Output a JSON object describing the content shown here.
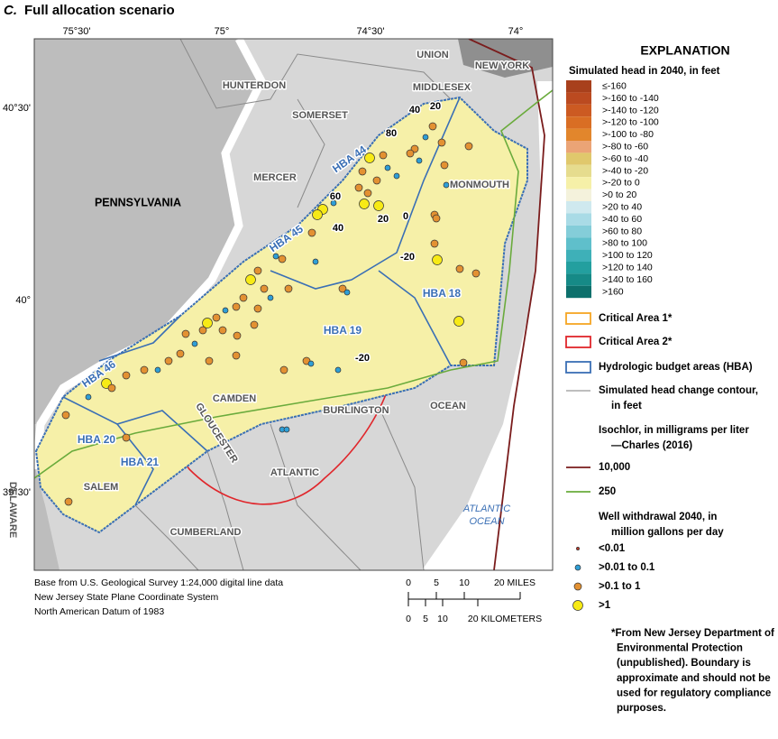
{
  "title_letter": "C.",
  "title": "Full allocation scenario",
  "longitudes": [
    "75°30'",
    "75°",
    "74°30'",
    "74°"
  ],
  "latitudes": [
    "40°30'",
    "40°",
    "39°30'"
  ],
  "places": [
    "UNION",
    "NEW YORK",
    "HUNTERDON",
    "MIDDLESEX",
    "SOMERSET",
    "MERCER",
    "PENNSYLVANIA",
    "MONMOUTH",
    "CAMDEN",
    "BURLINGTON",
    "OCEAN",
    "ATLANTIC",
    "SALEM",
    "CUMBERLAND",
    "GLOUCESTER",
    "DELAWARE"
  ],
  "ocean": [
    "ATLANTIC",
    "OCEAN"
  ],
  "hbas": [
    "HBA 44",
    "HBA 45",
    "HBA 18",
    "HBA 19",
    "HBA 46",
    "HBA 20",
    "HBA 21"
  ],
  "contours": [
    "40",
    "20",
    "80",
    "60",
    "20",
    "0",
    "40",
    "-20",
    "-20"
  ],
  "credits": [
    "Base from U.S. Geological Survey 1:24,000 digital line data",
    "New Jersey State Plane Coordinate System",
    "North American Datum of 1983"
  ],
  "scale": {
    "miles": [
      "0",
      "5",
      "10",
      "20 MILES"
    ],
    "km": [
      "0",
      "5",
      "10",
      "20 KILOMETERS"
    ]
  },
  "legend": {
    "title": "EXPLANATION",
    "head_title": "Simulated head in 2040, in feet",
    "head_classes": [
      {
        "label": "≤-160",
        "color": "#a8401c"
      },
      {
        "label": ">-160 to -140",
        "color": "#bb4a20"
      },
      {
        "label": ">-140 to -120",
        "color": "#cc5a22"
      },
      {
        "label": ">-120 to -100",
        "color": "#d96e24"
      },
      {
        "label": ">-100 to -80",
        "color": "#e2862c"
      },
      {
        "label": ">-80 to -60",
        "color": "#eba476"
      },
      {
        "label": ">-60 to -40",
        "color": "#e0c86c"
      },
      {
        "label": ">-40 to -20",
        "color": "#e6dc8e"
      },
      {
        "label": ">-20 to 0",
        "color": "#f6f0a8"
      },
      {
        "label": ">0 to 20",
        "color": "#f4f2dc"
      },
      {
        "label": ">20 to 40",
        "color": "#cfe9ef"
      },
      {
        "label": ">40 to 60",
        "color": "#a9dbe6"
      },
      {
        "label": ">60 to 80",
        "color": "#84cdd9"
      },
      {
        "label": ">80 to 100",
        "color": "#5fbfcb"
      },
      {
        "label": ">100 to 120",
        "color": "#3eb0b8"
      },
      {
        "label": ">120 to 140",
        "color": "#239f9f"
      },
      {
        "label": ">140 to 160",
        "color": "#168a87"
      },
      {
        "label": ">160",
        "color": "#0d706c"
      }
    ],
    "areas": [
      {
        "label": "Critical Area 1*",
        "color": "#f5a623"
      },
      {
        "label": "Critical Area 2*",
        "color": "#e0262b"
      },
      {
        "label": "Hydrologic budget areas (HBA)",
        "color": "#3a6fb5"
      }
    ],
    "contour": {
      "label": [
        "Simulated head change contour,",
        "in feet"
      ],
      "color": "#a8a8a8"
    },
    "isochlor": {
      "title": [
        "Isochlor, in milligrams per liter",
        "—Charles (2016)"
      ],
      "items": [
        {
          "label": "10,000",
          "color": "#7a1c1c"
        },
        {
          "label": "250",
          "color": "#6aab3c"
        }
      ]
    },
    "wells": {
      "title": [
        "Well withdrawal 2040, in",
        "million gallons per day"
      ],
      "items": [
        {
          "label": "<0.01",
          "color": "#b8392a"
        },
        {
          "label": ">0.01 to 0.1",
          "color": "#2f9fd6"
        },
        {
          "label": ">0.1 to 1",
          "color": "#e39132"
        },
        {
          "label": ">1",
          "color": "#f7ea16"
        }
      ]
    },
    "footnote": [
      "*From New Jersey Department of",
      "Environmental Protection",
      "(unpublished). Boundary is",
      "approximate and should not be",
      "used for regulatory compliance",
      "purposes."
    ]
  }
}
